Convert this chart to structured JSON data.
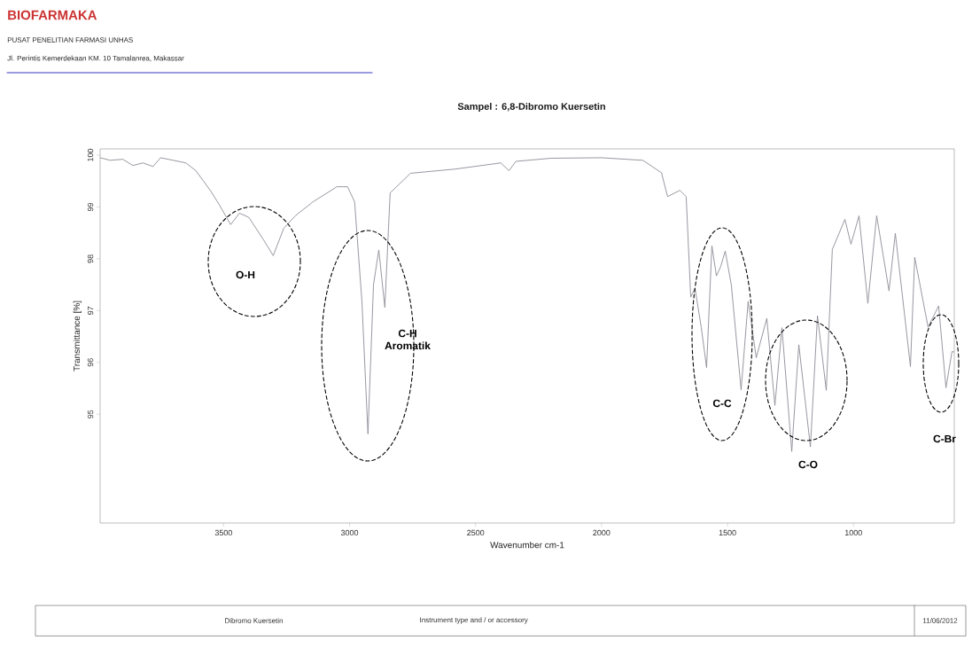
{
  "chart_data": {
    "type": "line",
    "title": "Sampel : 6,8-Dibromo Kuersetin",
    "xlabel": "Wavenumber cm-1",
    "ylabel": "Transmittance [%]",
    "xlim": [
      3990,
      600
    ],
    "ylim": [
      92.9,
      100.12
    ],
    "xticks": [
      3500,
      3000,
      2500,
      2000,
      1500,
      1000
    ],
    "yticks": [
      95,
      96,
      97,
      98,
      99,
      100
    ],
    "grid": false,
    "legend": false,
    "marker": "none",
    "line_style": "solid",
    "series": [
      {
        "color": "#8c8c96",
        "x": [
          3990,
          3950,
          3900,
          3860,
          3820,
          3780,
          3750,
          3700,
          3650,
          3610,
          3580,
          3550,
          3518,
          3472,
          3437,
          3400,
          3342,
          3303,
          3261,
          3215,
          3145,
          3050,
          3008,
          2980,
          2951,
          2927,
          2905,
          2884,
          2860,
          2839,
          2758,
          2582,
          2400,
          2367,
          2340,
          2200,
          2000,
          1836,
          1762,
          1738,
          1689,
          1664,
          1646,
          1629,
          1604,
          1583,
          1562,
          1544,
          1527,
          1509,
          1485,
          1446,
          1418,
          1386,
          1344,
          1312,
          1284,
          1245,
          1217,
          1171,
          1143,
          1108,
          1084,
          1034,
          1010,
          978,
          943,
          908,
          859,
          834,
          774,
          757,
          704,
          662,
          633,
          609,
          600
        ],
        "values": [
          99.95,
          99.9,
          99.92,
          99.8,
          99.85,
          99.78,
          99.95,
          99.9,
          99.85,
          99.7,
          99.5,
          99.3,
          99.05,
          98.66,
          98.88,
          98.8,
          98.37,
          98.06,
          98.59,
          98.83,
          99.1,
          99.39,
          99.39,
          99.1,
          97.18,
          94.62,
          97.5,
          98.17,
          97.06,
          99.27,
          99.65,
          99.73,
          99.85,
          99.7,
          99.88,
          99.94,
          99.95,
          99.9,
          99.66,
          99.2,
          99.32,
          99.2,
          97.26,
          97.43,
          96.67,
          95.9,
          98.25,
          97.67,
          97.85,
          98.15,
          97.5,
          95.47,
          97.18,
          96.09,
          96.85,
          95.17,
          96.67,
          94.28,
          96.34,
          94.37,
          96.9,
          95.46,
          98.18,
          98.76,
          98.28,
          98.83,
          97.14,
          98.83,
          97.38,
          98.49,
          95.92,
          98.03,
          96.68,
          97.09,
          95.51,
          96.21,
          96.2
        ]
      }
    ],
    "annotations": [
      "BIOFARMAKA",
      "PUSAT PENELITIAN FARMASI UNHAS",
      "Jl. Perintis Kemerdekaan KM. 10 Tamalanrea, Makassar",
      "Dibromo Kuersetin",
      "Instrument type and / or accessory",
      "11/06/2012",
      "O-H",
      "C-H Aromatik",
      "C-C",
      "C-O",
      "C-Br"
    ]
  }
}
